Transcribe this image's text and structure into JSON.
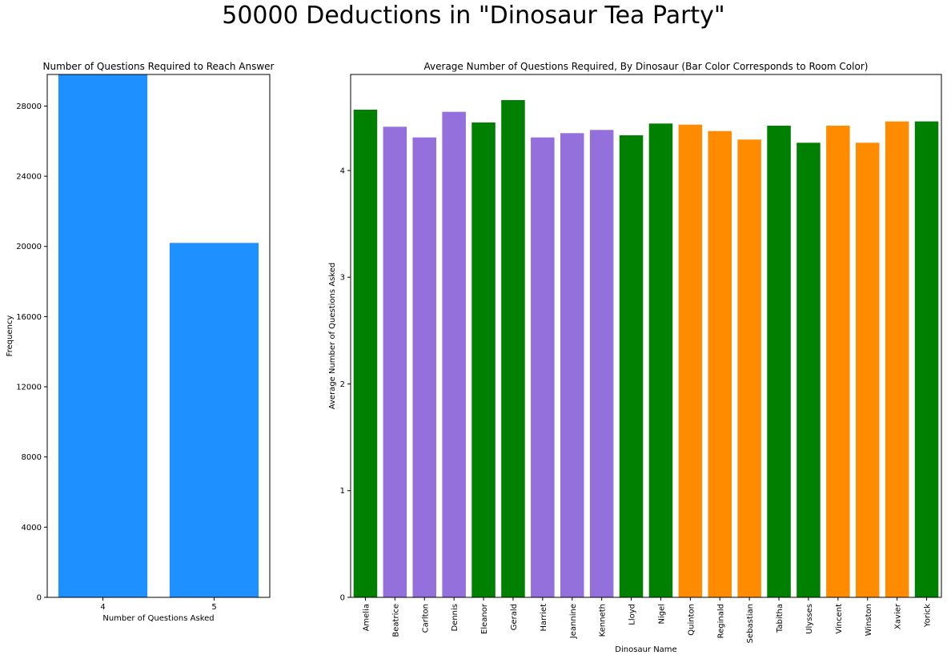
{
  "suptitle": "50000 Deductions in \"Dinosaur Tea Party\"",
  "colors": {
    "blue": "#1e90ff",
    "green": "#008000",
    "purple": "#9370db",
    "orange": "#ff8c00"
  },
  "chart_data": [
    {
      "type": "bar",
      "title": "Number of Questions Required to Reach Answer",
      "xlabel": "Number of Questions Asked",
      "ylabel": "Frequency",
      "categories": [
        "4",
        "5"
      ],
      "values": [
        29800,
        20200
      ],
      "ylim": [
        0,
        29800
      ],
      "yticks": [
        0,
        4000,
        8000,
        12000,
        16000,
        20000,
        24000,
        28000
      ],
      "bar_color": "#1e90ff",
      "grid": false
    },
    {
      "type": "bar",
      "title": "Average Number of Questions Required, By Dinosaur (Bar Color Corresponds to Room Color)",
      "xlabel": "Dinosaur Name",
      "ylabel": "Average Number of Questions Asked",
      "categories": [
        "Amelia",
        "Beatrice",
        "Carlton",
        "Dennis",
        "Eleanor",
        "Gerald",
        "Harriet",
        "Jeannine",
        "Kenneth",
        "Lloyd",
        "Nigel",
        "Quinton",
        "Reginald",
        "Sebastian",
        "Tabitha",
        "Ulysses",
        "Vincent",
        "Winston",
        "Xavier",
        "Yorick"
      ],
      "values": [
        4.57,
        4.41,
        4.31,
        4.55,
        4.45,
        4.66,
        4.31,
        4.35,
        4.38,
        4.33,
        4.44,
        4.43,
        4.37,
        4.29,
        4.42,
        4.26,
        4.42,
        4.26,
        4.46,
        4.46
      ],
      "bar_colors": [
        "#008000",
        "#9370db",
        "#9370db",
        "#9370db",
        "#008000",
        "#008000",
        "#9370db",
        "#9370db",
        "#9370db",
        "#008000",
        "#008000",
        "#ff8c00",
        "#ff8c00",
        "#ff8c00",
        "#008000",
        "#008000",
        "#ff8c00",
        "#ff8c00",
        "#ff8c00",
        "#008000"
      ],
      "ylim": [
        0,
        4.9
      ],
      "yticks": [
        0,
        1,
        2,
        3,
        4
      ],
      "grid": false
    }
  ]
}
